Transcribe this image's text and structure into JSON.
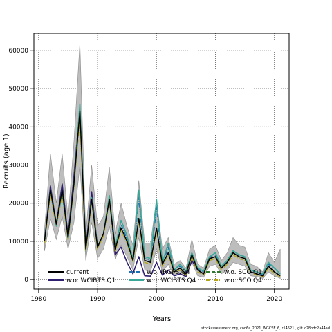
{
  "chart_data": {
    "type": "line",
    "xlabel": "Years",
    "ylabel": "Recruits (age 1)",
    "xlim": [
      1979.2,
      2022.5
    ],
    "ylim": [
      -2500,
      64500
    ],
    "grid": true,
    "xticks": [
      1980,
      1990,
      2000,
      2010,
      2020
    ],
    "yticks": [
      0,
      10000,
      20000,
      30000,
      40000,
      50000,
      60000
    ],
    "ytick_labels": [
      "0",
      "10000",
      "20000",
      "30000",
      "40000",
      "50000",
      "60000"
    ],
    "legend_position": "bottom",
    "x": [
      1981,
      1982,
      1983,
      1984,
      1985,
      1986,
      1987,
      1988,
      1989,
      1990,
      1991,
      1992,
      1993,
      1994,
      1995,
      1996,
      1997,
      1998,
      1999,
      2000,
      2001,
      2002,
      2003,
      2004,
      2005,
      2006,
      2007,
      2008,
      2009,
      2010,
      2011,
      2012,
      2013,
      2014,
      2015,
      2016,
      2017,
      2018,
      2019,
      2020,
      2021
    ],
    "band": {
      "lower": [
        7500,
        16000,
        10500,
        16500,
        8000,
        15000,
        30000,
        5000,
        15000,
        5500,
        8000,
        14000,
        5500,
        9000,
        6000,
        2500,
        11000,
        2500,
        2000,
        8000,
        2000,
        4000,
        1000,
        1500,
        800,
        4500,
        1000,
        600,
        3500,
        4000,
        1500,
        2500,
        4500,
        4000,
        3500,
        1000,
        800,
        300,
        2000,
        1000,
        300
      ],
      "upper": [
        13000,
        33000,
        20000,
        33000,
        16000,
        36000,
        62000,
        12000,
        30000,
        14000,
        16500,
        29500,
        12000,
        20000,
        14000,
        9000,
        26000,
        9500,
        9500,
        21000,
        8000,
        11000,
        4000,
        5000,
        3000,
        10500,
        4000,
        3000,
        8000,
        9000,
        5000,
        7000,
        11000,
        9000,
        8500,
        4000,
        3500,
        2000,
        7000,
        4500,
        8000
      ]
    },
    "series": [
      {
        "name": "current",
        "color": "#000000",
        "dash": "solid",
        "values": [
          10000,
          23500,
          14500,
          23500,
          11000,
          25000,
          44000,
          8000,
          21000,
          8500,
          12000,
          21000,
          8000,
          13500,
          10000,
          5000,
          16000,
          5000,
          4500,
          13500,
          4000,
          7000,
          2000,
          3000,
          1500,
          6500,
          2500,
          1500,
          5500,
          6000,
          3000,
          4500,
          7000,
          6000,
          5500,
          2000,
          1500,
          1000,
          3500,
          2000,
          1000
        ]
      },
      {
        "name": "w.o. WCIBTS.Q1",
        "color": "#2e1f6f",
        "dash": "solid",
        "values": [
          10000,
          24500,
          14500,
          25000,
          11500,
          27000,
          45000,
          8000,
          23000,
          8500,
          12000,
          21500,
          6500,
          8500,
          4500,
          1500,
          6000,
          1000,
          900,
          4500,
          1200,
          2500,
          1000,
          1500,
          800,
          5000,
          2500,
          1500,
          5500,
          6000,
          3000,
          4500,
          7000,
          6000,
          5500,
          2000,
          1500,
          1000,
          3500,
          2000,
          1000
        ]
      },
      {
        "name": "w.o. IRGFS.Q4",
        "color": "#1d6fb0",
        "dash": "dashdot",
        "values": [
          10000,
          23500,
          14500,
          23500,
          11000,
          25000,
          44500,
          8000,
          21000,
          8500,
          12000,
          21000,
          8000,
          14500,
          10500,
          5000,
          21500,
          5500,
          5000,
          19000,
          4000,
          8500,
          2500,
          3500,
          2000,
          7000,
          2800,
          2000,
          6000,
          6500,
          3500,
          5000,
          7500,
          6500,
          6000,
          2500,
          2000,
          1200,
          4000,
          3000,
          1500
        ]
      },
      {
        "name": "w.o. WCIBTS.Q4",
        "color": "#3aa898",
        "dash": "solid",
        "values": [
          10000,
          23000,
          14000,
          22500,
          10500,
          24500,
          46000,
          7500,
          21500,
          8500,
          12000,
          22000,
          8500,
          15500,
          11500,
          5500,
          23500,
          6000,
          5500,
          21000,
          4500,
          9500,
          2500,
          4000,
          2200,
          7000,
          3000,
          2200,
          6000,
          7000,
          3500,
          5000,
          7500,
          6500,
          6000,
          2500,
          2000,
          1500,
          4500,
          3000,
          1500
        ]
      },
      {
        "name": "w.o. SCO.Q1",
        "color": "#2f7a2f",
        "dash": "dash",
        "values": [
          10000,
          23500,
          14500,
          23500,
          11000,
          25000,
          44000,
          8000,
          21000,
          8500,
          12000,
          21000,
          8000,
          13500,
          10000,
          5000,
          16000,
          5000,
          4500,
          13500,
          4000,
          7000,
          2000,
          3000,
          1500,
          6500,
          2500,
          1500,
          5500,
          6000,
          3000,
          4500,
          7000,
          6000,
          5500,
          2000,
          1500,
          1000,
          3500,
          2000,
          1000
        ]
      },
      {
        "name": "w.o. SCO.Q4",
        "color": "#b3a51e",
        "dash": "dashdot",
        "values": [
          9500,
          22500,
          14000,
          22500,
          10500,
          24500,
          42000,
          7500,
          20500,
          8000,
          11500,
          20500,
          7500,
          13000,
          9500,
          4500,
          15500,
          4500,
          4000,
          13000,
          3500,
          6500,
          1800,
          2500,
          1200,
          6000,
          2000,
          1200,
          5000,
          5500,
          2500,
          4000,
          6500,
          5500,
          5000,
          1800,
          1200,
          800,
          3000,
          1500,
          800
        ]
      }
    ]
  },
  "footer": "stockassessment.org, cod6a_2021_WGCSE_6, r14521 , git: c28bdc2a44ad"
}
